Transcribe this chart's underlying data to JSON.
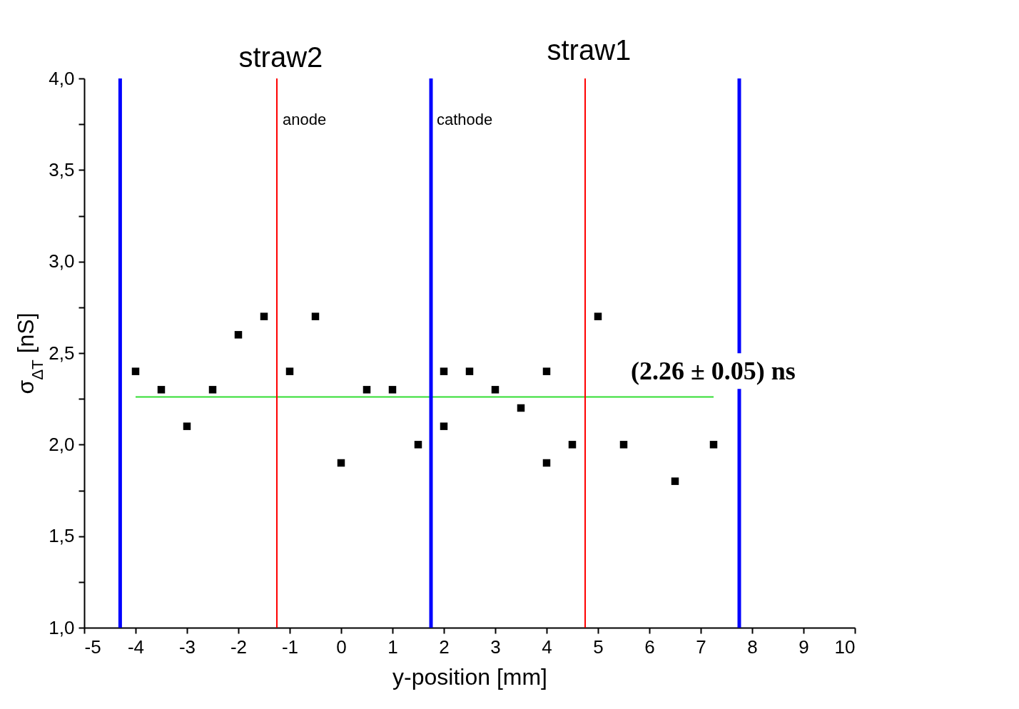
{
  "chart_data": {
    "type": "scatter",
    "xlabel": "y-position [mm]",
    "ylabel": "σ$_{ΔT}$ [nS]",
    "marker": "square",
    "xlim": [
      -5,
      10
    ],
    "ylim": [
      1,
      4
    ],
    "xticks": [
      -5,
      -4,
      -3,
      -2,
      -1,
      0,
      1,
      2,
      3,
      4,
      5,
      6,
      7,
      8,
      9,
      10
    ],
    "yticks": [
      {
        "value": 1,
        "label": "1,0"
      },
      {
        "value": 1.25,
        "label": null
      },
      {
        "value": 1.5,
        "label": "1,5"
      },
      {
        "value": 1.75,
        "label": null
      },
      {
        "value": 2,
        "label": "2,0"
      },
      {
        "value": 2.25,
        "label": null
      },
      {
        "value": 2.5,
        "label": "2,5"
      },
      {
        "value": 2.75,
        "label": null
      },
      {
        "value": 3,
        "label": "3,0"
      },
      {
        "value": 3.25,
        "label": null
      },
      {
        "value": 3.5,
        "label": "3,5"
      },
      {
        "value": 3.75,
        "label": null
      },
      {
        "value": 4,
        "label": "4,0"
      }
    ],
    "series": [
      {
        "color": "#000000",
        "x": [
          -4,
          -3.5,
          -3,
          -2.5,
          -2,
          -1.5,
          -1,
          -0.5,
          0,
          0.5,
          1,
          1.5,
          2,
          2,
          2.5,
          3,
          3.5,
          4,
          4,
          4.5,
          5,
          5.5,
          6.5,
          7.25
        ],
        "values": [
          2.4,
          2.3,
          2.1,
          2.3,
          2.6,
          2.7,
          2.4,
          2.7,
          1.9,
          2.3,
          2.3,
          2.0,
          2.4,
          2.1,
          2.4,
          2.3,
          2.2,
          2.4,
          1.9,
          2.0,
          2.7,
          2.0,
          1.8,
          2.0
        ]
      },
      {
        "type": "line",
        "color": "#33dd33",
        "marker": "none",
        "x": [
          -4,
          7.25
        ],
        "values": [
          2.26,
          2.26
        ]
      }
    ],
    "ref_lines": [
      {
        "axis": "x",
        "value": -4.3,
        "label": null,
        "color": "#0000ff"
      },
      {
        "axis": "x",
        "value": -1.25,
        "label": "anode",
        "color": "#ff0000"
      },
      {
        "axis": "x",
        "value": 1.75,
        "label": "cathode",
        "color": "#0000ff"
      },
      {
        "axis": "x",
        "value": 4.75,
        "label": null,
        "color": "#ff0000"
      },
      {
        "axis": "x",
        "value": 7.75,
        "label": null,
        "color": "#0000ff"
      }
    ],
    "annotations": [
      "straw2",
      "straw1",
      "(2.26 ± 0.05) ns"
    ]
  }
}
